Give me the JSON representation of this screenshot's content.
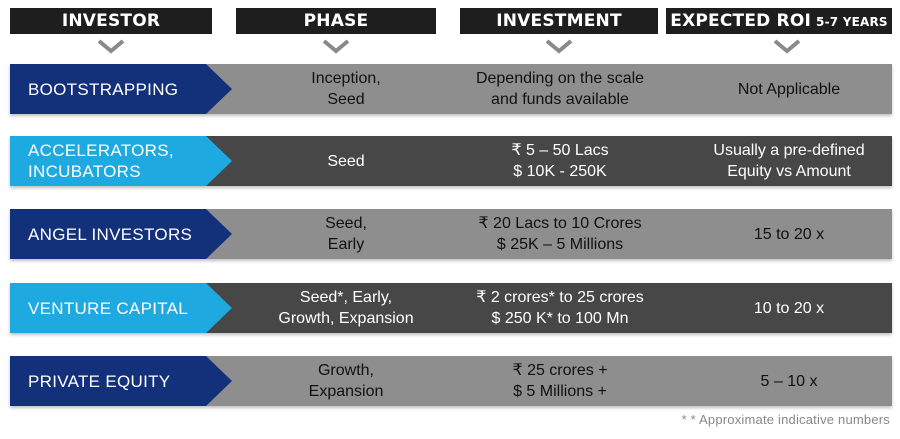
{
  "headers": {
    "investor": "INVESTOR",
    "phase": "PHASE",
    "investment": "INVESTMENT",
    "roi": "EXPECTED ROI",
    "roi_suffix": "5-7 YEARS"
  },
  "rows": [
    {
      "investor": [
        "BOOTSTRAPPING"
      ],
      "phase": [
        "Inception,",
        "Seed"
      ],
      "investment": [
        "Depending on the scale",
        "and funds available"
      ],
      "roi": [
        "Not Applicable"
      ]
    },
    {
      "investor": [
        "ACCELERATORS,",
        "INCUBATORS"
      ],
      "phase": [
        "Seed"
      ],
      "investment": [
        "₹ 5 – 50 Lacs",
        "$ 10K  - 250K"
      ],
      "roi": [
        "Usually a pre-defined",
        "Equity vs Amount"
      ]
    },
    {
      "investor": [
        "ANGEL INVESTORS"
      ],
      "phase": [
        "Seed,",
        "Early"
      ],
      "investment": [
        "₹ 20 Lacs to 10 Crores",
        "$ 25K – 5 Millions"
      ],
      "roi": [
        "15 to 20 x"
      ]
    },
    {
      "investor": [
        "VENTURE CAPITAL"
      ],
      "phase": [
        "Seed*, Early,",
        "Growth, Expansion"
      ],
      "investment": [
        "₹ 2 crores* to 25 crores",
        "$ 250 K* to 100 Mn"
      ],
      "roi": [
        "10 to 20 x"
      ]
    },
    {
      "investor": [
        "PRIVATE EQUITY"
      ],
      "phase": [
        "Growth,",
        "Expansion"
      ],
      "investment": [
        "₹ 25 crores +",
        "$ 5 Millions +"
      ],
      "roi": [
        "5 – 10  x"
      ]
    }
  ],
  "footnote": "* * Approximate indicative numbers",
  "colors": {
    "header_bg": "#1e1e1e",
    "band_light": "#8e8e8e",
    "band_dark": "#474747",
    "tag_navy": "#13307a",
    "tag_cyan": "#1fa9e1",
    "chevron": "#8a8a8a"
  }
}
